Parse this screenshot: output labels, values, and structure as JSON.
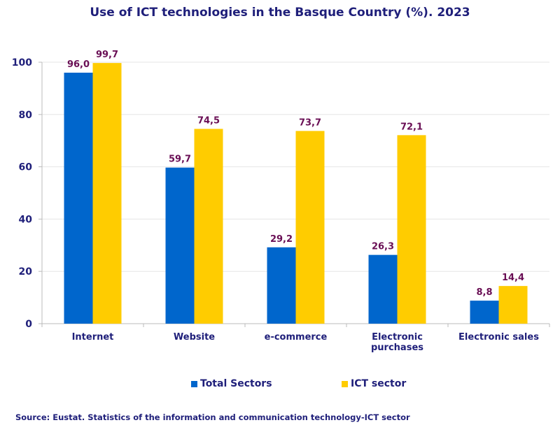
{
  "chart_data": {
    "type": "bar",
    "title": "Use of ICT technologies in the Basque Country (%). 2023",
    "categories": [
      [
        "Internet"
      ],
      [
        "Website"
      ],
      [
        "e-commerce"
      ],
      [
        "Electronic",
        "purchases"
      ],
      [
        "Electronic sales"
      ]
    ],
    "series": [
      {
        "name": "Total Sectors",
        "color": "#0066cc",
        "values": [
          96.0,
          59.7,
          29.2,
          26.3,
          8.8
        ],
        "labels": [
          "96,0",
          "59,7",
          "29,2",
          "26,3",
          "8,8"
        ]
      },
      {
        "name": "ICT sector",
        "color": "#ffcc00",
        "values": [
          99.7,
          74.5,
          73.7,
          72.1,
          14.4
        ],
        "labels": [
          "99,7",
          "74,5",
          "73,7",
          "72,1",
          "14,4"
        ]
      }
    ],
    "ylim": [
      0,
      100
    ],
    "yticks": [
      0,
      20,
      40,
      60,
      80,
      100
    ],
    "grid": true,
    "legend": "bottom"
  },
  "source": "Source: Eustat. Statistics of the information and communication technology-ICT sector"
}
